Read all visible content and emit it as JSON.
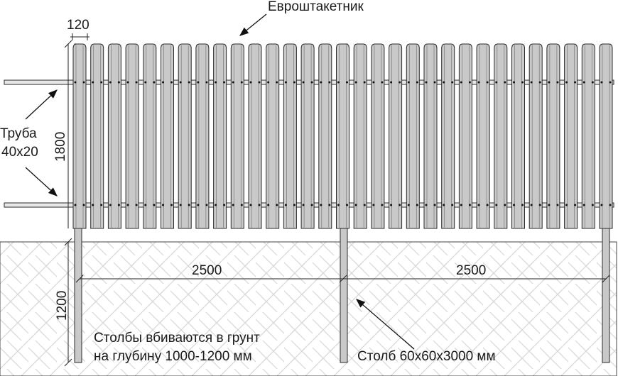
{
  "labels": {
    "picket_name": "Евроштакетник",
    "picket_width": "120",
    "height_above": "1800",
    "depth": "1200",
    "pipe_line1": "Труба",
    "pipe_line2": "40х20",
    "span_left": "2500",
    "span_right": "2500",
    "note_line1": "Столбы вбиваются в грунт",
    "note_line2": "на глубину 1000-1200 мм",
    "post_spec": "Столб 60х60х3000 мм"
  },
  "colors": {
    "picket_fill": "#c9c9c9",
    "line": "#2a2a2a",
    "ground_hatch": "#d8d8d8"
  }
}
